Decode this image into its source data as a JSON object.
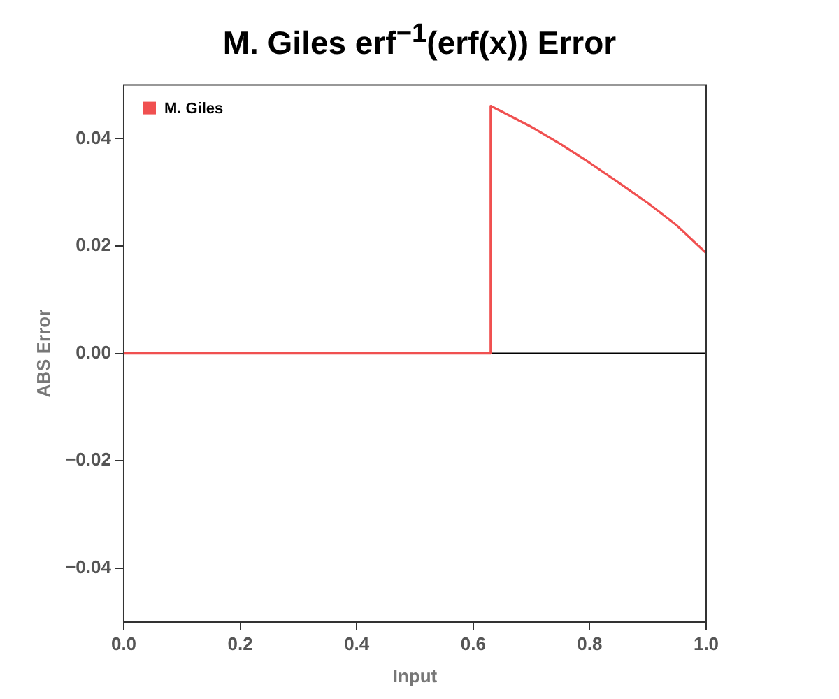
{
  "chart_data": {
    "type": "line",
    "title": "M. Giles erf$^{−1}$(erf(x)) Error",
    "xlabel": "Input",
    "ylabel": "ABS Error",
    "series": [
      {
        "name": "M. Giles",
        "color": "#f05050",
        "x": [
          0,
          0.2,
          0.4,
          0.63,
          0.63,
          0.65,
          0.7,
          0.75,
          0.8,
          0.85,
          0.9,
          0.95,
          1.0
        ],
        "values": [
          0,
          0,
          0,
          0,
          0.0461,
          0.045,
          0.0422,
          0.039,
          0.0355,
          0.0318,
          0.028,
          0.0238,
          0.0187
        ]
      }
    ],
    "xlim": [
      0,
      1
    ],
    "ylim": [
      -0.05,
      0.05
    ],
    "xticks": [
      {
        "value": 0,
        "label": "0.0"
      },
      {
        "value": 0.2,
        "label": "0.2"
      },
      {
        "value": 0.4,
        "label": "0.4"
      },
      {
        "value": 0.6,
        "label": "0.6"
      },
      {
        "value": 0.8,
        "label": "0.8"
      },
      {
        "value": 1,
        "label": "1.0"
      }
    ],
    "yticks": [
      {
        "value": -0.04,
        "label": "−0.04"
      },
      {
        "value": -0.02,
        "label": "−0.02"
      },
      {
        "value": 0,
        "label": "0.00"
      },
      {
        "value": 0.02,
        "label": "0.02"
      },
      {
        "value": 0.04,
        "label": "0.04"
      }
    ],
    "ref_lines": [
      {
        "axis": "y",
        "value": 0,
        "color": "#000000"
      }
    ],
    "legend": "top left",
    "grid": false,
    "marker": "none",
    "line_style": "solid"
  }
}
